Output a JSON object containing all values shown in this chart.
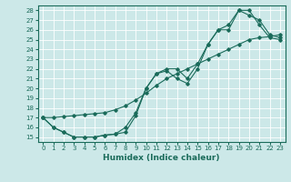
{
  "xlabel": "Humidex (Indice chaleur)",
  "bg_color": "#cce8e8",
  "line_color": "#1a6b5a",
  "xlim": [
    -0.5,
    23.5
  ],
  "ylim": [
    14.5,
    28.5
  ],
  "xticks": [
    0,
    1,
    2,
    3,
    4,
    5,
    6,
    7,
    8,
    9,
    10,
    11,
    12,
    13,
    14,
    15,
    16,
    17,
    18,
    19,
    20,
    21,
    22,
    23
  ],
  "yticks": [
    15,
    16,
    17,
    18,
    19,
    20,
    21,
    22,
    23,
    24,
    25,
    26,
    27,
    28
  ],
  "line1": [
    17,
    16,
    15.5,
    15,
    15,
    15,
    15.2,
    15.3,
    15.5,
    17.2,
    20,
    21.5,
    21.8,
    21.0,
    20.5,
    22.0,
    24.5,
    26.0,
    26.0,
    28.0,
    28.0,
    26.5,
    25.2,
    25.0
  ],
  "line2": [
    17,
    16,
    15.5,
    15,
    15,
    15,
    15.2,
    15.3,
    16.0,
    17.5,
    20,
    21.5,
    22.0,
    22.0,
    21.0,
    22.5,
    24.5,
    26.0,
    26.5,
    28.0,
    27.5,
    27.0,
    25.5,
    25.2
  ],
  "line3": [
    17,
    17,
    17.1,
    17.2,
    17.3,
    17.4,
    17.5,
    17.8,
    18.2,
    18.8,
    19.5,
    20.3,
    21.0,
    21.5,
    22.0,
    22.5,
    23.0,
    23.5,
    24.0,
    24.5,
    25.0,
    25.2,
    25.3,
    25.5
  ]
}
